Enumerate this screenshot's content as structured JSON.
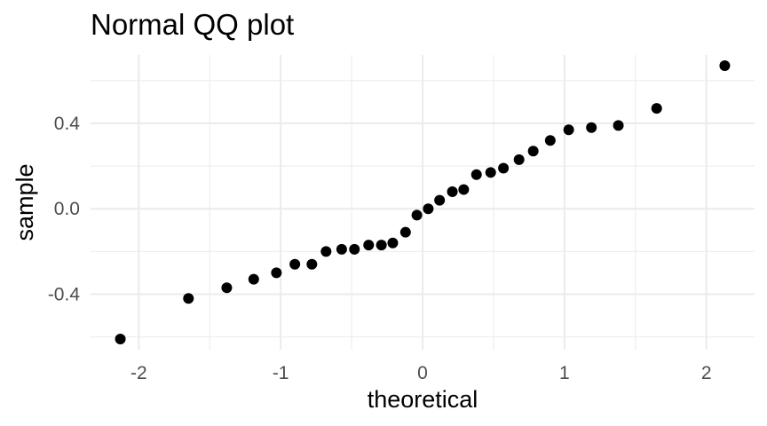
{
  "chart_data": {
    "type": "scatter",
    "title": "Normal QQ plot",
    "xlabel": "theoretical",
    "ylabel": "sample",
    "xlim": [
      -2.34,
      2.34
    ],
    "ylim": [
      -0.66,
      0.72
    ],
    "x_ticks": [
      {
        "value": -2,
        "label": "-2"
      },
      {
        "value": -1,
        "label": "-1"
      },
      {
        "value": 0,
        "label": "0"
      },
      {
        "value": 1,
        "label": "1"
      },
      {
        "value": 2,
        "label": "2"
      }
    ],
    "y_ticks": [
      {
        "value": -0.4,
        "label": "-0.4"
      },
      {
        "value": 0.0,
        "label": "0.0"
      },
      {
        "value": 0.4,
        "label": "0.4"
      }
    ],
    "grid": true,
    "legend": "none",
    "point_color": "#000000",
    "series": [
      {
        "x": [
          -2.13,
          -1.65,
          -1.38,
          -1.19,
          -1.03,
          -0.9,
          -0.78,
          -0.68,
          -0.57,
          -0.48,
          -0.38,
          -0.29,
          -0.21,
          -0.12,
          -0.04,
          0.04,
          0.12,
          0.21,
          0.29,
          0.38,
          0.48,
          0.57,
          0.68,
          0.78,
          0.9,
          1.03,
          1.19,
          1.38,
          1.65,
          2.13
        ],
        "y": [
          -0.61,
          -0.42,
          -0.37,
          -0.33,
          -0.3,
          -0.26,
          -0.26,
          -0.2,
          -0.19,
          -0.19,
          -0.17,
          -0.17,
          -0.16,
          -0.11,
          -0.03,
          0.0,
          0.04,
          0.08,
          0.09,
          0.16,
          0.17,
          0.19,
          0.23,
          0.27,
          0.32,
          0.37,
          0.38,
          0.39,
          0.47,
          0.67
        ]
      }
    ]
  }
}
